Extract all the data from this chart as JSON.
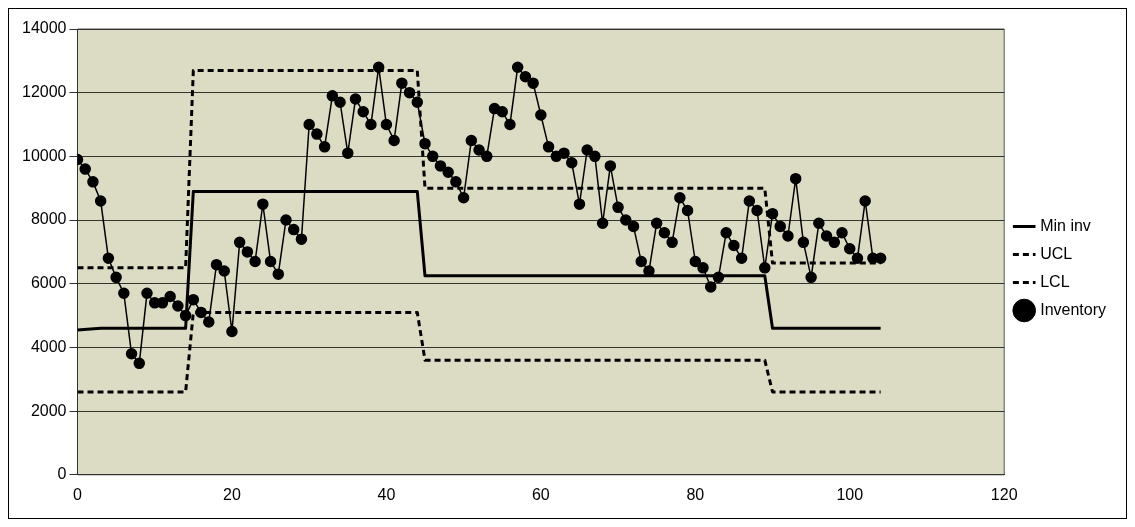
{
  "chart_data": {
    "type": "line",
    "xlim": [
      0,
      120
    ],
    "xticks": [
      0,
      20,
      40,
      60,
      80,
      100,
      120
    ],
    "ylim": [
      0,
      14000
    ],
    "yticks": [
      0,
      2000,
      4000,
      6000,
      8000,
      10000,
      12000,
      14000
    ],
    "grid": "y",
    "legend": "right",
    "series": [
      {
        "name": "Min inv",
        "color": "#000000",
        "marker": "none",
        "line_style": "solid",
        "x": [
          0,
          3,
          14,
          15,
          44,
          45,
          89,
          90,
          104
        ],
        "values": [
          4550,
          4600,
          4600,
          8900,
          8900,
          6250,
          6250,
          4600,
          4600
        ]
      },
      {
        "name": "UCL",
        "color": "#000000",
        "marker": "none",
        "line_style": "dashed",
        "x": [
          0,
          14,
          15,
          44,
          45,
          89,
          90,
          104
        ],
        "values": [
          6500,
          6500,
          12700,
          12700,
          9000,
          9000,
          6650,
          6650
        ]
      },
      {
        "name": "LCL",
        "color": "#000000",
        "marker": "none",
        "line_style": "dashed",
        "x": [
          0,
          14,
          15,
          44,
          45,
          89,
          90,
          104
        ],
        "values": [
          2600,
          2600,
          5100,
          5100,
          3600,
          3600,
          2600,
          2600
        ]
      },
      {
        "name": "Inventory",
        "color": "#000000",
        "marker": "circle",
        "line_style": "solid",
        "x": [
          0,
          1,
          2,
          3,
          4,
          5,
          6,
          7,
          8,
          9,
          10,
          11,
          12,
          13,
          14,
          15,
          16,
          17,
          18,
          19,
          20,
          21,
          22,
          23,
          24,
          25,
          26,
          27,
          28,
          29,
          30,
          31,
          32,
          33,
          34,
          35,
          36,
          37,
          38,
          39,
          40,
          41,
          42,
          43,
          44,
          45,
          46,
          47,
          48,
          49,
          50,
          51,
          52,
          53,
          54,
          55,
          56,
          57,
          58,
          59,
          60,
          61,
          62,
          63,
          64,
          65,
          66,
          67,
          68,
          69,
          70,
          71,
          72,
          73,
          74,
          75,
          76,
          77,
          78,
          79,
          80,
          81,
          82,
          83,
          84,
          85,
          86,
          87,
          88,
          89,
          90,
          91,
          92,
          93,
          94,
          95,
          96,
          97,
          98,
          99,
          100,
          101,
          102,
          103,
          104
        ],
        "values": [
          9900,
          9600,
          9200,
          8600,
          6800,
          6200,
          5700,
          3800,
          3500,
          5700,
          5400,
          5400,
          5600,
          5300,
          5000,
          5500,
          5100,
          4800,
          6600,
          6400,
          4500,
          7300,
          7000,
          6700,
          8500,
          6700,
          6300,
          8000,
          7700,
          7400,
          11000,
          10700,
          10300,
          11900,
          11700,
          10100,
          11800,
          11400,
          11000,
          12800,
          11000,
          10500,
          12300,
          12000,
          11700,
          10400,
          10000,
          9700,
          9500,
          9200,
          8700,
          10500,
          10200,
          10000,
          11500,
          11400,
          11000,
          12800,
          12500,
          12300,
          11300,
          10300,
          10000,
          10100,
          9800,
          8500,
          10200,
          10000,
          7900,
          9700,
          8400,
          8000,
          7800,
          6700,
          6400,
          7900,
          7600,
          7300,
          8700,
          8300,
          6700,
          6500,
          5900,
          6200,
          7600,
          7200,
          6800,
          8600,
          8300,
          6500,
          8200,
          7800,
          7500,
          9300,
          7300,
          6200,
          7900,
          7500,
          7300,
          7600,
          7100,
          6800,
          8600,
          6800,
          6800
        ]
      }
    ]
  }
}
